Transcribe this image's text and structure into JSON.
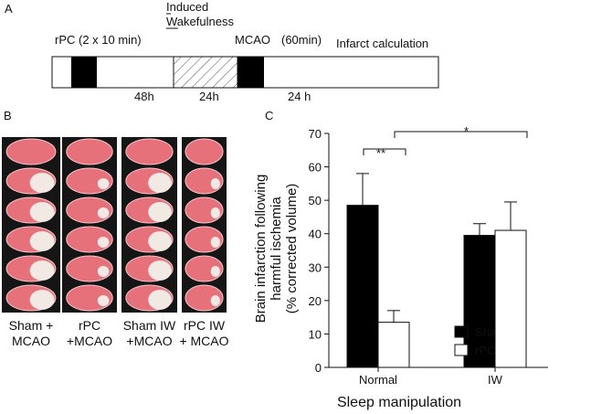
{
  "panel_a": {
    "letter": "A",
    "wake_label": [
      "Induced",
      "Wakefulness"
    ],
    "rpc": "rPC (2 x 10 min)",
    "mcao": "MCAO",
    "mcao_duration": "(60min)",
    "infarct": "Infarct calculation",
    "intervals": [
      "48h",
      "24h",
      "24 h"
    ]
  },
  "panel_b": {
    "letter": "B",
    "groups": [
      [
        "Sham +",
        "MCAO"
      ],
      [
        "rPC",
        "+MCAO"
      ],
      [
        "Sham IW",
        "+MCAO"
      ],
      [
        "rPC IW",
        "+ MCAO"
      ]
    ]
  },
  "chart_data": {
    "type": "bar",
    "letter": "C",
    "y_label": [
      "Brain infarction following",
      "harmful ischemia",
      "(% corrected volume)"
    ],
    "x_label": "Sleep manipulation",
    "categories": [
      "Normal",
      "IW"
    ],
    "series": [
      {
        "name": "Sham",
        "color": "#000000",
        "values": [
          48.5,
          39.5
        ],
        "errors": [
          9.5,
          3.5
        ]
      },
      {
        "name": "rPC",
        "color": "#ffffff",
        "values": [
          13.5,
          41
        ],
        "errors": [
          3.5,
          8.5
        ]
      }
    ],
    "ylim": [
      0,
      70
    ],
    "yticks": [
      0,
      10,
      20,
      30,
      40,
      50,
      60,
      70
    ],
    "annotations": [
      "**",
      "*"
    ]
  }
}
